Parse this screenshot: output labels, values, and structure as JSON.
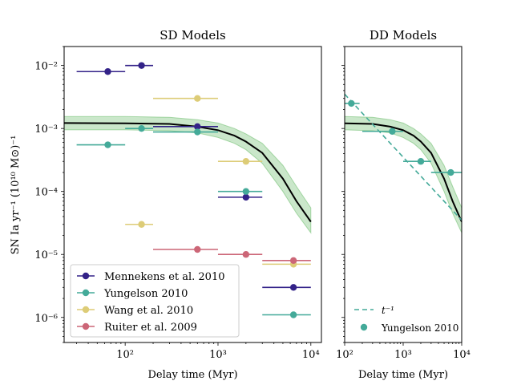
{
  "figure": {
    "ylabel": "SN Ia yr⁻¹ (10¹⁰ M⊙)⁻¹"
  },
  "chart_data": [
    {
      "type": "scatter",
      "title": "SD Models",
      "xlabel": "Delay time (Myr)",
      "xscale": "log",
      "yscale": "log",
      "xlim": [
        22,
        13000
      ],
      "ylim": [
        4e-07,
        0.02
      ],
      "xticks": [
        {
          "v": 100,
          "t": "10²"
        },
        {
          "v": 1000,
          "t": "10³"
        },
        {
          "v": 10000,
          "t": "10⁴"
        }
      ],
      "yticks": [
        {
          "v": 1e-06,
          "t": "10⁻⁶"
        },
        {
          "v": 1e-05,
          "t": "10⁻⁵"
        },
        {
          "v": 0.0001,
          "t": "10⁻⁴"
        },
        {
          "v": 0.001,
          "t": "10⁻³"
        },
        {
          "v": 0.01,
          "t": "10⁻²"
        }
      ],
      "legend_position": "lower-left",
      "series": [
        {
          "name": "Mennekens et al. 2010",
          "color": "#332288",
          "points": [
            {
              "x": 65,
              "y": 0.008,
              "xlo": 30,
              "xhi": 100
            },
            {
              "x": 150,
              "y": 0.01,
              "xlo": 100,
              "xhi": 200
            },
            {
              "x": 600,
              "y": 0.00107,
              "xlo": 200,
              "xhi": 1000
            },
            {
              "x": 2000,
              "y": 8.1e-05,
              "xlo": 1000,
              "xhi": 3000
            },
            {
              "x": 6500,
              "y": 3e-06,
              "xlo": 3000,
              "xhi": 10000
            }
          ]
        },
        {
          "name": "Yungelson 2010",
          "color": "#44aa99",
          "points": [
            {
              "x": 65,
              "y": 0.00055,
              "xlo": 30,
              "xhi": 100
            },
            {
              "x": 150,
              "y": 0.001,
              "xlo": 100,
              "xhi": 200
            },
            {
              "x": 600,
              "y": 0.00088,
              "xlo": 200,
              "xhi": 1000
            },
            {
              "x": 2000,
              "y": 0.0001,
              "xlo": 1000,
              "xhi": 3000
            },
            {
              "x": 6500,
              "y": 1.1e-06,
              "xlo": 3000,
              "xhi": 10000
            }
          ]
        },
        {
          "name": "Wang et al. 2010",
          "color": "#ddcc77",
          "points": [
            {
              "x": 150,
              "y": 3e-05,
              "xlo": 100,
              "xhi": 200
            },
            {
              "x": 600,
              "y": 0.003,
              "xlo": 200,
              "xhi": 1000
            },
            {
              "x": 2000,
              "y": 0.0003,
              "xlo": 1000,
              "xhi": 3000
            },
            {
              "x": 6500,
              "y": 7e-06,
              "xlo": 3000,
              "xhi": 10000
            }
          ]
        },
        {
          "name": "Ruiter et al. 2009",
          "color": "#cc6677",
          "points": [
            {
              "x": 600,
              "y": 1.2e-05,
              "xlo": 200,
              "xhi": 1000
            },
            {
              "x": 2000,
              "y": 1e-05,
              "xlo": 1000,
              "xhi": 3000
            },
            {
              "x": 6500,
              "y": 8e-06,
              "xlo": 3000,
              "xhi": 10000
            }
          ]
        }
      ],
      "model_curve": {
        "color": "#000000",
        "band_color": "#2ca02c",
        "x": [
          22,
          100,
          300,
          600,
          1000,
          1500,
          2000,
          3000,
          5000,
          7000,
          10000
        ],
        "y": [
          0.00122,
          0.00121,
          0.00118,
          0.00107,
          0.00094,
          0.00077,
          0.00062,
          0.00041,
          0.00016,
          7e-05,
          3.3e-05
        ],
        "ylo": [
          0.00095,
          0.00095,
          0.00092,
          0.00085,
          0.00072,
          0.00058,
          0.00046,
          0.00028,
          0.0001,
          4.5e-05,
          2.2e-05
        ],
        "yhi": [
          0.00155,
          0.00155,
          0.0015,
          0.00138,
          0.00122,
          0.001,
          0.00082,
          0.00058,
          0.00026,
          0.00012,
          5.5e-05
        ]
      }
    },
    {
      "type": "scatter",
      "title": "DD Models",
      "xlabel": "Delay time (Myr)",
      "xscale": "log",
      "yscale": "log",
      "xlim": [
        100,
        10000
      ],
      "ylim": [
        4e-07,
        0.02
      ],
      "xticks": [
        {
          "v": 100,
          "t": "10²"
        },
        {
          "v": 1000,
          "t": "10³"
        },
        {
          "v": 10000,
          "t": "10⁴"
        }
      ],
      "legend_position": "lower-left",
      "series": [
        {
          "name": "Yungelson 2010",
          "color": "#44aa99",
          "points": [
            {
              "x": 130,
              "y": 0.0025,
              "xlo": 100,
              "xhi": 180
            },
            {
              "x": 650,
              "y": 0.0009,
              "xlo": 200,
              "xhi": 1000
            },
            {
              "x": 2000,
              "y": 0.0003,
              "xlo": 1000,
              "xhi": 3000
            },
            {
              "x": 6500,
              "y": 0.0002,
              "xlo": 3000,
              "xhi": 10000
            }
          ]
        }
      ],
      "reference_line": {
        "name": "t⁻¹",
        "color": "#44aa99",
        "x": [
          100,
          10000
        ],
        "y": [
          0.0035,
          3.5e-05
        ]
      },
      "model_curve": {
        "color": "#000000",
        "band_color": "#2ca02c",
        "x": [
          100,
          300,
          600,
          1000,
          1500,
          2000,
          3000,
          5000,
          7000,
          10000
        ],
        "y": [
          0.00121,
          0.00118,
          0.00107,
          0.00094,
          0.00077,
          0.00062,
          0.00041,
          0.00016,
          7e-05,
          3.3e-05
        ],
        "ylo": [
          0.00095,
          0.00092,
          0.00085,
          0.00072,
          0.00058,
          0.00046,
          0.00028,
          0.0001,
          4.5e-05,
          2.2e-05
        ],
        "yhi": [
          0.00155,
          0.0015,
          0.00138,
          0.00122,
          0.001,
          0.00082,
          0.00058,
          0.00026,
          0.00012,
          5.5e-05
        ]
      }
    }
  ]
}
